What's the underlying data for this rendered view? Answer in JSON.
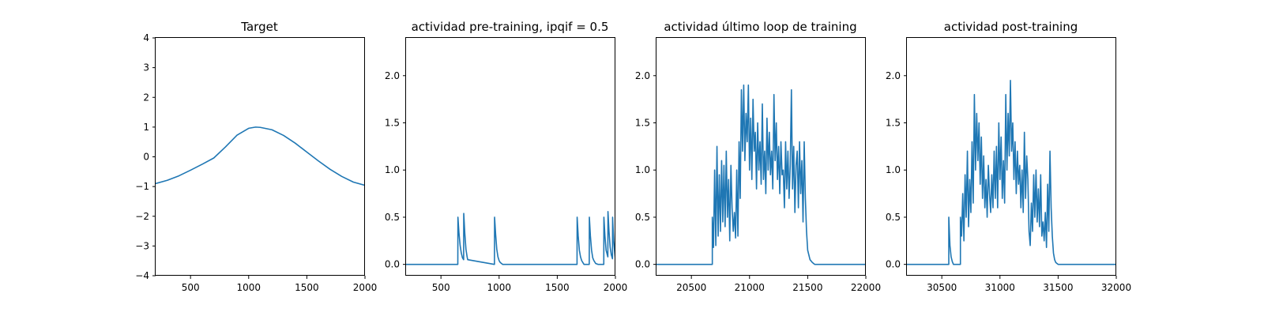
{
  "chart_data": [
    {
      "type": "line",
      "title": "Target",
      "xlim": [
        200,
        2000
      ],
      "ylim": [
        -4,
        4
      ],
      "xticks": [
        500,
        1000,
        1500,
        2000
      ],
      "yticks": [
        -4,
        -3,
        -2,
        -1,
        0,
        1,
        2,
        3,
        4
      ],
      "grid": false,
      "color": "#1f77b4",
      "series": [
        {
          "x": [
            200,
            300,
            400,
            500,
            600,
            700,
            800,
            900,
            1000,
            1060,
            1100,
            1200,
            1300,
            1400,
            1500,
            1600,
            1700,
            1800,
            1900,
            2000
          ],
          "y": [
            -0.9,
            -0.79,
            -0.64,
            -0.45,
            -0.25,
            -0.04,
            0.33,
            0.73,
            0.96,
            1.0,
            0.99,
            0.91,
            0.72,
            0.46,
            0.16,
            -0.14,
            -0.42,
            -0.66,
            -0.85,
            -0.96
          ]
        }
      ]
    },
    {
      "type": "line",
      "title": "actividad pre-training, ipqif = 0.5",
      "xlim": [
        200,
        2000
      ],
      "ylim": [
        -0.12,
        2.4
      ],
      "xticks": [
        500,
        1000,
        1500,
        2000
      ],
      "yticks": [
        0.0,
        0.5,
        1.0,
        1.5,
        2.0
      ],
      "grid": false,
      "color": "#1f77b4",
      "series": [
        {
          "x": [
            200,
            645,
            646,
            655,
            665,
            675,
            685,
            695,
            696,
            705,
            715,
            725,
            730,
            960,
            961,
            970,
            980,
            990,
            1000,
            1010,
            1030,
            1670,
            1671,
            1680,
            1690,
            1700,
            1710,
            1720,
            1730,
            1775,
            1776,
            1785,
            1795,
            1805,
            1815,
            1830,
            1850,
            1900,
            1901,
            1910,
            1920,
            1935,
            1936,
            1945,
            1955,
            1965,
            1975,
            1976,
            1985,
            2000
          ],
          "y": [
            0,
            0,
            0.5,
            0.33,
            0.2,
            0.12,
            0.07,
            0.05,
            0.54,
            0.33,
            0.16,
            0.08,
            0.05,
            0,
            0.5,
            0.32,
            0.16,
            0.08,
            0.04,
            0.02,
            0,
            0,
            0.5,
            0.3,
            0.15,
            0.08,
            0.04,
            0.02,
            0,
            0,
            0.5,
            0.3,
            0.15,
            0.07,
            0.04,
            0.01,
            0,
            0,
            0.5,
            0.3,
            0.15,
            0.08,
            0.56,
            0.35,
            0.18,
            0.1,
            0.06,
            0.5,
            0.25,
            0.05
          ]
        }
      ]
    },
    {
      "type": "line",
      "title": "actividad último loop de training",
      "xlim": [
        20200,
        22000
      ],
      "ylim": [
        -0.12,
        2.4
      ],
      "xticks": [
        20500,
        21000,
        21500,
        22000
      ],
      "yticks": [
        0.0,
        0.5,
        1.0,
        1.5,
        2.0
      ],
      "grid": false,
      "color": "#1f77b4",
      "series": [
        {
          "x": [
            20200,
            20680,
            20680,
            20690,
            20700,
            20710,
            20720,
            20730,
            20740,
            20750,
            20760,
            20770,
            20780,
            20790,
            20800,
            20810,
            20820,
            20830,
            20840,
            20850,
            20860,
            20870,
            20880,
            20890,
            20900,
            20910,
            20920,
            20930,
            20940,
            20950,
            20960,
            20970,
            20980,
            20990,
            21000,
            21010,
            21020,
            21030,
            21040,
            21050,
            21060,
            21070,
            21080,
            21090,
            21100,
            21110,
            21120,
            21130,
            21140,
            21150,
            21160,
            21170,
            21180,
            21190,
            21200,
            21210,
            21220,
            21230,
            21240,
            21250,
            21260,
            21270,
            21280,
            21290,
            21300,
            21310,
            21320,
            21330,
            21340,
            21350,
            21360,
            21370,
            21380,
            21390,
            21400,
            21410,
            21420,
            21430,
            21440,
            21450,
            21460,
            21470,
            21480,
            21490,
            21500,
            21520,
            21540,
            21560,
            21600,
            22000
          ],
          "y": [
            0,
            0,
            0.5,
            0.18,
            1.0,
            0.2,
            1.25,
            0.3,
            0.95,
            0.35,
            1.1,
            0.45,
            1.05,
            0.4,
            1.2,
            0.5,
            0.9,
            0.25,
            1.05,
            0.6,
            0.35,
            0.55,
            0.28,
            1.0,
            0.3,
            1.3,
            0.7,
            1.85,
            1.2,
            1.9,
            1.1,
            1.6,
            1.3,
            1.9,
            1.0,
            1.55,
            0.9,
            1.75,
            1.2,
            1.4,
            0.8,
            1.5,
            1.0,
            1.3,
            0.85,
            1.7,
            0.9,
            1.2,
            0.75,
            1.55,
            1.0,
            1.4,
            0.95,
            1.2,
            0.8,
            1.8,
            1.1,
            1.5,
            0.9,
            1.25,
            0.75,
            1.3,
            0.95,
            1.0,
            0.6,
            1.3,
            0.8,
            1.2,
            0.7,
            1.05,
            1.85,
            0.8,
            1.25,
            0.55,
            1.05,
            1.2,
            0.6,
            1.3,
            0.75,
            1.1,
            0.45,
            1.3,
            0.7,
            0.35,
            0.15,
            0.05,
            0.02,
            0,
            0,
            0
          ]
        }
      ]
    },
    {
      "type": "line",
      "title": "actividad post-training",
      "xlim": [
        30200,
        32000
      ],
      "ylim": [
        -0.12,
        2.4
      ],
      "xticks": [
        30500,
        31000,
        31500,
        32000
      ],
      "yticks": [
        0.0,
        0.5,
        1.0,
        1.5,
        2.0
      ],
      "grid": false,
      "color": "#1f77b4",
      "series": [
        {
          "x": [
            30200,
            30560,
            30560,
            30570,
            30580,
            30590,
            30600,
            30660,
            30660,
            30670,
            30680,
            30690,
            30700,
            30710,
            30720,
            30730,
            30740,
            30750,
            30760,
            30770,
            30780,
            30790,
            30800,
            30810,
            30820,
            30830,
            30840,
            30850,
            30860,
            30870,
            30880,
            30890,
            30900,
            30910,
            30920,
            30930,
            30940,
            30950,
            30960,
            30970,
            30980,
            30990,
            31000,
            31010,
            31020,
            31030,
            31040,
            31050,
            31060,
            31070,
            31080,
            31090,
            31100,
            31110,
            31120,
            31130,
            31140,
            31150,
            31160,
            31170,
            31180,
            31190,
            31200,
            31210,
            31220,
            31230,
            31240,
            31250,
            31260,
            31270,
            31280,
            31290,
            31300,
            31310,
            31320,
            31330,
            31340,
            31350,
            31360,
            31370,
            31380,
            31390,
            31400,
            31410,
            31420,
            31430,
            31440,
            31450,
            31460,
            31470,
            31480,
            31490,
            31500,
            31510,
            31520,
            31530,
            31540,
            31560,
            31580,
            31620,
            32000
          ],
          "y": [
            0,
            0,
            0.5,
            0.2,
            0.08,
            0.03,
            0,
            0,
            0.5,
            0.3,
            0.75,
            0.25,
            0.95,
            0.5,
            1.2,
            0.4,
            0.9,
            0.55,
            1.3,
            0.65,
            1.8,
            1.0,
            1.6,
            1.1,
            1.5,
            0.85,
            1.35,
            0.7,
            1.15,
            0.6,
            0.9,
            0.5,
            1.05,
            0.75,
            0.55,
            0.95,
            0.6,
            1.2,
            0.7,
            1.25,
            0.6,
            1.5,
            0.9,
            1.35,
            0.7,
            1.1,
            0.65,
            1.8,
            1.0,
            1.6,
            1.15,
            1.95,
            1.2,
            1.5,
            0.9,
            1.3,
            0.75,
            1.2,
            0.85,
            1.05,
            0.6,
            1.0,
            0.55,
            1.4,
            0.7,
            1.15,
            0.9,
            0.35,
            0.2,
            0.65,
            0.35,
            0.95,
            0.5,
            1.0,
            0.45,
            0.8,
            0.4,
            0.95,
            0.3,
            0.45,
            0.25,
            0.55,
            0.18,
            0.85,
            0.35,
            1.2,
            0.6,
            0.3,
            0.12,
            0.05,
            0.02,
            0.01,
            0,
            0,
            0,
            0,
            0,
            0,
            0,
            0,
            0
          ]
        }
      ]
    }
  ]
}
